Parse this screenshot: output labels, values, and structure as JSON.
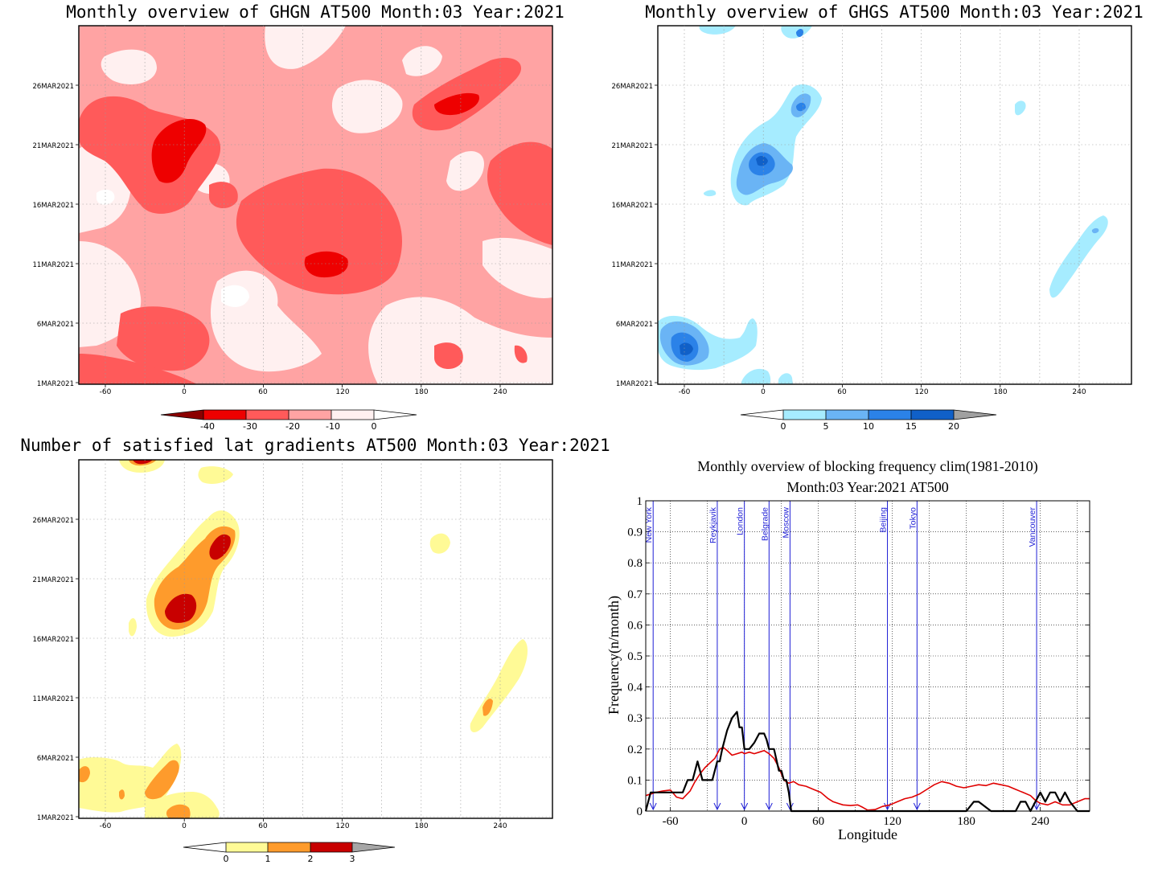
{
  "colors": {
    "ghgn": [
      "#ffffff",
      "#fff0f0",
      "#ffa3a3",
      "#ff5a5a",
      "#ee0000",
      "#8b0000"
    ],
    "ghgs": [
      "#ffffff",
      "#a6ecff",
      "#6ab4f5",
      "#2b82e8",
      "#1060c8",
      "#a0a0a0"
    ],
    "sat": [
      "#ffffff",
      "#fffa96",
      "#fe9b2c",
      "#c80000",
      "#a6a6a6"
    ],
    "clim": "#e00000",
    "current": "#000000",
    "cities": "#1f1fd6"
  },
  "panels": {
    "ghgn": {
      "title": "Monthly overview of GHGN AT500 Month:03 Year:2021",
      "xticks": [
        "-60",
        "0",
        "60",
        "120",
        "180",
        "240"
      ],
      "yticks": [
        "26MAR2021",
        "21MAR2021",
        "16MAR2021",
        "11MAR2021",
        "6MAR2021",
        "1MAR2021"
      ],
      "colorbar": [
        "-40",
        "-30",
        "-20",
        "-10",
        "0"
      ]
    },
    "ghgs": {
      "title": "Monthly overview of GHGS AT500 Month:03 Year:2021",
      "xticks": [
        "-60",
        "0",
        "60",
        "120",
        "180",
        "240"
      ],
      "yticks": [
        "26MAR2021",
        "21MAR2021",
        "16MAR2021",
        "11MAR2021",
        "6MAR2021",
        "1MAR2021"
      ],
      "colorbar": [
        "0",
        "5",
        "10",
        "15",
        "20"
      ]
    },
    "sat": {
      "title": "Number of satisfied lat gradients AT500 Month:03 Year:2021",
      "xticks": [
        "-60",
        "0",
        "60",
        "120",
        "180",
        "240"
      ],
      "yticks": [
        "26MAR2021",
        "21MAR2021",
        "16MAR2021",
        "11MAR2021",
        "6MAR2021",
        "1MAR2021"
      ],
      "colorbar": [
        "0",
        "1",
        "2",
        "3"
      ]
    }
  },
  "chart_data": {
    "type": "line",
    "title": "Monthly overview of blocking frequency clim(1981-2010)",
    "subtitle": "Month:03 Year:2021  AT500",
    "xlabel": "Longitude",
    "ylabel": "Frequency(n/month)",
    "xlim": [
      -80,
      280
    ],
    "ylim": [
      0,
      1
    ],
    "xticks": [
      "-60",
      "0",
      "60",
      "120",
      "180",
      "240"
    ],
    "yticks": [
      "0",
      "0.1",
      "0.2",
      "0.3",
      "0.4",
      "0.5",
      "0.6",
      "0.7",
      "0.8",
      "0.9",
      "1"
    ],
    "grid": true,
    "cities": [
      {
        "name": "New York",
        "lon": -74
      },
      {
        "name": "Reykjavik",
        "lon": -22
      },
      {
        "name": "London",
        "lon": 0
      },
      {
        "name": "Belgrade",
        "lon": 20
      },
      {
        "name": "Moscow",
        "lon": 37
      },
      {
        "name": "Beijing",
        "lon": 116
      },
      {
        "name": "Tokyo",
        "lon": 140
      },
      {
        "name": "Vancouver",
        "lon": 237
      }
    ],
    "series": [
      {
        "x": [
          -80,
          -76,
          -72,
          -66,
          -60,
          -55,
          -50,
          -44,
          -40,
          -36,
          -32,
          -28,
          -24,
          -20,
          -17,
          -14,
          -10,
          -6,
          -2,
          0,
          4,
          8,
          12,
          16,
          20,
          24,
          28,
          32,
          36,
          40,
          44,
          50,
          56,
          62,
          68,
          72,
          76,
          80,
          86,
          92,
          96,
          100,
          106,
          112,
          118,
          124,
          130,
          136,
          142,
          148,
          154,
          160,
          166,
          172,
          178,
          184,
          190,
          196,
          202,
          208,
          214,
          220,
          226,
          232,
          236,
          240,
          246,
          252,
          258,
          264,
          270,
          276,
          280
        ],
        "values": [
          0.05,
          0.055,
          0.06,
          0.065,
          0.068,
          0.045,
          0.04,
          0.065,
          0.095,
          0.12,
          0.14,
          0.155,
          0.17,
          0.2,
          0.205,
          0.195,
          0.18,
          0.185,
          0.19,
          0.185,
          0.19,
          0.185,
          0.19,
          0.195,
          0.185,
          0.17,
          0.14,
          0.1,
          0.09,
          0.095,
          0.085,
          0.08,
          0.07,
          0.06,
          0.04,
          0.03,
          0.025,
          0.02,
          0.018,
          0.02,
          0.012,
          0.003,
          0.005,
          0.015,
          0.02,
          0.03,
          0.04,
          0.045,
          0.055,
          0.07,
          0.085,
          0.095,
          0.09,
          0.08,
          0.075,
          0.08,
          0.085,
          0.082,
          0.09,
          0.085,
          0.08,
          0.07,
          0.06,
          0.05,
          0.035,
          0.025,
          0.02,
          0.03,
          0.02,
          0.02,
          0.03,
          0.04,
          0.04
        ]
      },
      {
        "x": [
          -80,
          -76,
          -72,
          -60,
          -54,
          -50,
          -46,
          -42,
          -38,
          -36,
          -34,
          -30,
          -26,
          -22,
          -20,
          -18,
          -14,
          -10,
          -6,
          -4,
          -2,
          0,
          4,
          8,
          12,
          16,
          18,
          20,
          24,
          28,
          30,
          32,
          34,
          36,
          38,
          40,
          160,
          180,
          186,
          190,
          200,
          220,
          224,
          228,
          232,
          236,
          240,
          244,
          248,
          252,
          256,
          260,
          264,
          270,
          280
        ],
        "values": [
          0,
          0.06,
          0.06,
          0.06,
          0.06,
          0.06,
          0.1,
          0.1,
          0.16,
          0.13,
          0.1,
          0.1,
          0.1,
          0.16,
          0.16,
          0.2,
          0.26,
          0.3,
          0.32,
          0.27,
          0.27,
          0.2,
          0.2,
          0.22,
          0.25,
          0.25,
          0.23,
          0.2,
          0.2,
          0.13,
          0.13,
          0.1,
          0.1,
          0.06,
          0,
          0,
          0,
          0,
          0.03,
          0.03,
          0,
          0,
          0.03,
          0.03,
          0,
          0.03,
          0.06,
          0.03,
          0.06,
          0.06,
          0.03,
          0.06,
          0.03,
          0,
          0
        ]
      }
    ]
  }
}
